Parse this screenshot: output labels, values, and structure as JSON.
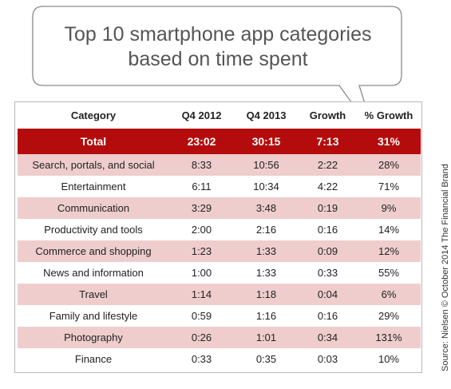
{
  "title_line1": "Top 10 smartphone app categories",
  "title_line2": "based on time spent",
  "source": "Source: Nielsen © October 2014 The Financial Brand",
  "colors": {
    "total_row": "#b40c0c",
    "stripe": "#efcdcd",
    "title": "#555555"
  },
  "chart_data": {
    "type": "table",
    "columns": [
      "Category",
      "Q4 2012",
      "Q4 2013",
      "Growth",
      "% Growth"
    ],
    "total": {
      "category": "Total",
      "q4_2012": "23:02",
      "q4_2013": "30:15",
      "growth": "7:13",
      "pct_growth": "31%"
    },
    "rows": [
      {
        "category": "Search, portals, and social",
        "q4_2012": "8:33",
        "q4_2013": "10:56",
        "growth": "2:22",
        "pct_growth": "28%"
      },
      {
        "category": "Entertainment",
        "q4_2012": "6:11",
        "q4_2013": "10:34",
        "growth": "4:22",
        "pct_growth": "71%"
      },
      {
        "category": "Communication",
        "q4_2012": "3:29",
        "q4_2013": "3:48",
        "growth": "0:19",
        "pct_growth": "9%"
      },
      {
        "category": "Productivity and tools",
        "q4_2012": "2:00",
        "q4_2013": "2:16",
        "growth": "0:16",
        "pct_growth": "14%"
      },
      {
        "category": "Commerce and shopping",
        "q4_2012": "1:23",
        "q4_2013": "1:33",
        "growth": "0:09",
        "pct_growth": "12%"
      },
      {
        "category": "News and information",
        "q4_2012": "1:00",
        "q4_2013": "1:33",
        "growth": "0:33",
        "pct_growth": "55%"
      },
      {
        "category": "Travel",
        "q4_2012": "1:14",
        "q4_2013": "1:18",
        "growth": "0:04",
        "pct_growth": "6%"
      },
      {
        "category": "Family and lifestyle",
        "q4_2012": "0:59",
        "q4_2013": "1:16",
        "growth": "0:16",
        "pct_growth": "29%"
      },
      {
        "category": "Photography",
        "q4_2012": "0:26",
        "q4_2013": "1:01",
        "growth": "0:34",
        "pct_growth": "131%"
      },
      {
        "category": "Finance",
        "q4_2012": "0:33",
        "q4_2013": "0:35",
        "growth": "0:03",
        "pct_growth": "10%"
      }
    ]
  }
}
